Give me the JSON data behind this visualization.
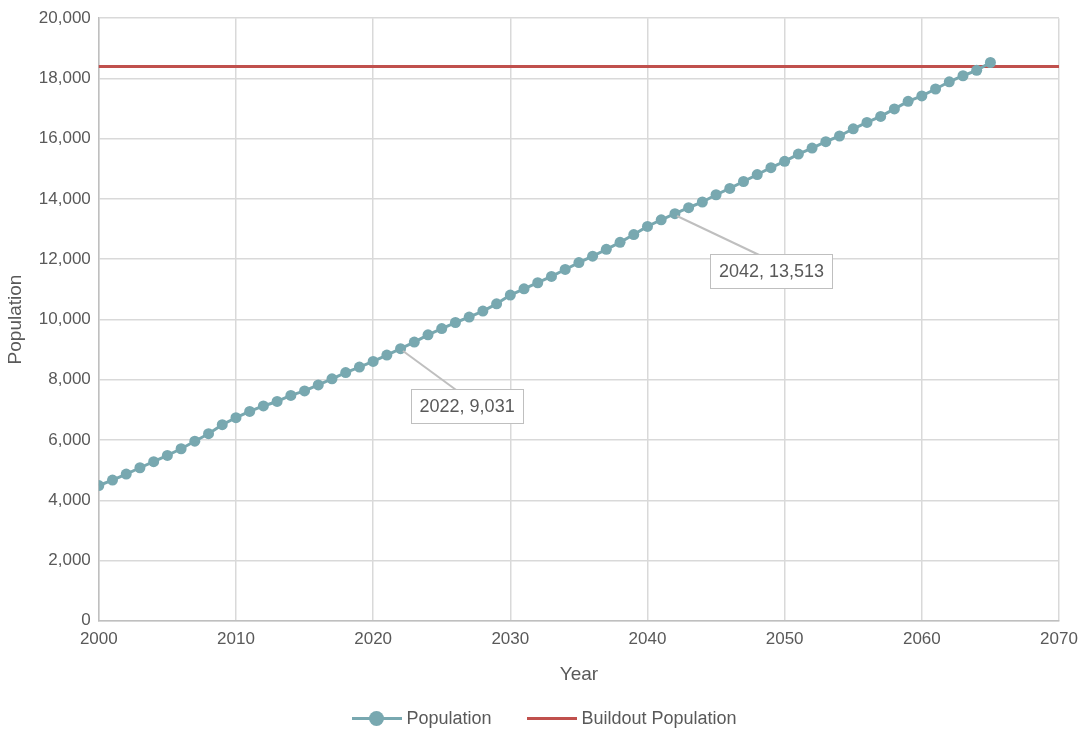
{
  "chart_data": {
    "type": "line",
    "xlabel": "Year",
    "ylabel": "Population",
    "x": [
      2000,
      2001,
      2002,
      2003,
      2004,
      2005,
      2006,
      2007,
      2008,
      2009,
      2010,
      2011,
      2012,
      2013,
      2014,
      2015,
      2016,
      2017,
      2018,
      2019,
      2020,
      2021,
      2022,
      2023,
      2024,
      2025,
      2026,
      2027,
      2028,
      2029,
      2030,
      2031,
      2032,
      2033,
      2034,
      2035,
      2036,
      2037,
      2038,
      2039,
      2040,
      2041,
      2042,
      2043,
      2044,
      2045,
      2046,
      2047,
      2048,
      2049,
      2050,
      2051,
      2052,
      2053,
      2054,
      2055,
      2056,
      2057,
      2058,
      2059,
      2060,
      2061,
      2062,
      2063,
      2064,
      2065
    ],
    "series": [
      {
        "name": "Population",
        "color": "#78a8b0",
        "values": [
          4490,
          4670,
          4870,
          5080,
          5280,
          5490,
          5710,
          5960,
          6210,
          6510,
          6740,
          6950,
          7130,
          7280,
          7480,
          7630,
          7830,
          8030,
          8240,
          8420,
          8610,
          8820,
          9031,
          9250,
          9490,
          9700,
          9900,
          10080,
          10280,
          10520,
          10810,
          11020,
          11220,
          11430,
          11660,
          11890,
          12100,
          12330,
          12560,
          12820,
          13090,
          13310,
          13513,
          13710,
          13900,
          14140,
          14350,
          14580,
          14810,
          15040,
          15250,
          15490,
          15690,
          15900,
          16090,
          16330,
          16540,
          16740,
          16990,
          17240,
          17420,
          17650,
          17890,
          18090,
          18270,
          18530
        ]
      }
    ],
    "ref_lines": [
      {
        "axis": "y",
        "value": 18400,
        "label": "Buildout Population",
        "color": "#c0504d"
      }
    ],
    "annotations": [
      {
        "text": "2022, 9,031",
        "x": 2022,
        "y": 9031
      },
      {
        "text": "2042, 13,513",
        "x": 2042,
        "y": 13513
      }
    ],
    "xlim": [
      2000,
      2070
    ],
    "xticks": [
      2000,
      2010,
      2020,
      2030,
      2040,
      2050,
      2060,
      2070
    ],
    "ylim": [
      0,
      20000
    ],
    "yticks": [
      {
        "value": 0,
        "label": "0"
      },
      {
        "value": 2000,
        "label": "2,000"
      },
      {
        "value": 4000,
        "label": "4,000"
      },
      {
        "value": 6000,
        "label": "6,000"
      },
      {
        "value": 8000,
        "label": "8,000"
      },
      {
        "value": 10000,
        "label": "10,000"
      },
      {
        "value": 12000,
        "label": "12,000"
      },
      {
        "value": 14000,
        "label": "14,000"
      },
      {
        "value": 16000,
        "label": "16,000"
      },
      {
        "value": 18000,
        "label": "18,000"
      },
      {
        "value": 20000,
        "label": "20,000"
      }
    ],
    "grid": true,
    "legend": "bottom",
    "marker": "circle",
    "line_style": "solid"
  }
}
